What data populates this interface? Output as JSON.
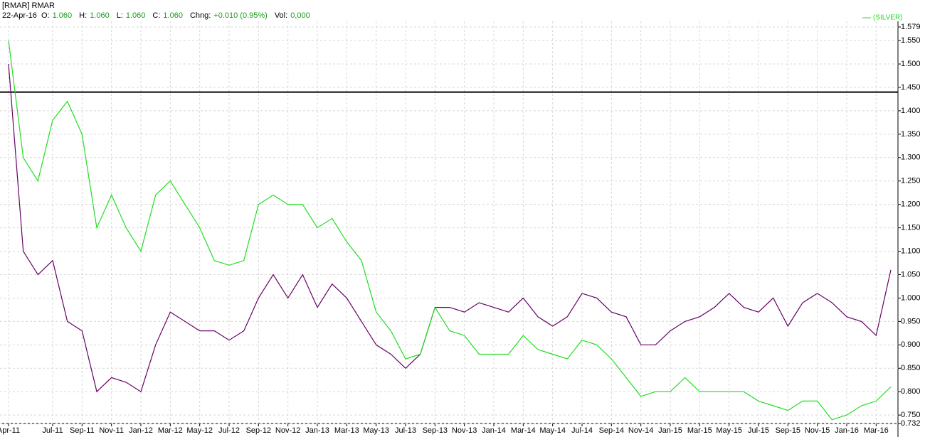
{
  "chart_data": {
    "type": "line",
    "title": "[RMAR] RMAR",
    "header": {
      "date": "22-Apr-16",
      "fields": [
        {
          "key": "O:",
          "value": "1.060"
        },
        {
          "key": "H:",
          "value": "1.060"
        },
        {
          "key": "L:",
          "value": "1.060"
        },
        {
          "key": "C:",
          "value": "1.060"
        },
        {
          "key": "Chng:",
          "value": "+0.010 (0.95%)"
        },
        {
          "key": "Vol:",
          "value": "0,000"
        }
      ]
    },
    "categories": [
      "Apr-11",
      null,
      null,
      "Jul-11",
      null,
      "Sep-11",
      null,
      "Nov-11",
      null,
      "Jan-12",
      null,
      "Mar-12",
      null,
      "May-12",
      null,
      "Jul-12",
      null,
      "Sep-12",
      null,
      "Nov-12",
      null,
      "Jan-13",
      null,
      "Mar-13",
      null,
      "May-13",
      null,
      "Jul-13",
      null,
      "Sep-13",
      null,
      "Nov-13",
      null,
      "Jan-14",
      null,
      "Mar-14",
      null,
      "May-14",
      null,
      "Jul-14",
      null,
      "Sep-14",
      null,
      "Nov-14",
      null,
      "Jan-15",
      null,
      "Mar-15",
      null,
      "May-15",
      null,
      "Jul-15",
      null,
      "Sep-15",
      null,
      "Nov-15",
      null,
      "Jan-16",
      null,
      "Mar-16",
      null
    ],
    "series": [
      {
        "color": "#660066",
        "values": [
          1.5,
          1.1,
          1.05,
          1.08,
          0.95,
          0.93,
          0.8,
          0.83,
          0.82,
          0.8,
          0.9,
          0.97,
          0.95,
          0.93,
          0.93,
          0.91,
          0.93,
          1.0,
          1.05,
          1.0,
          1.05,
          0.98,
          1.03,
          1.0,
          0.95,
          0.9,
          0.88,
          0.85,
          0.88,
          0.98,
          0.98,
          0.97,
          0.99,
          0.98,
          0.97,
          1.0,
          0.96,
          0.94,
          0.96,
          1.01,
          1.0,
          0.97,
          0.96,
          0.9,
          0.9,
          0.93,
          0.95,
          0.96,
          0.98,
          1.01,
          0.98,
          0.97,
          1.0,
          0.94,
          0.99,
          1.01,
          0.99,
          0.96,
          0.95,
          0.92,
          1.06
        ]
      },
      {
        "name": "(SILVER)",
        "color": "#22dd22",
        "values": [
          1.55,
          1.3,
          1.25,
          1.38,
          1.42,
          1.35,
          1.15,
          1.22,
          1.15,
          1.1,
          1.22,
          1.25,
          1.2,
          1.15,
          1.08,
          1.07,
          1.08,
          1.2,
          1.22,
          1.2,
          1.2,
          1.15,
          1.17,
          1.12,
          1.08,
          0.97,
          0.93,
          0.87,
          0.88,
          0.98,
          0.93,
          0.92,
          0.88,
          0.88,
          0.88,
          0.92,
          0.89,
          0.88,
          0.87,
          0.91,
          0.9,
          0.87,
          0.83,
          0.79,
          0.8,
          0.8,
          0.83,
          0.8,
          0.8,
          0.8,
          0.8,
          0.78,
          0.77,
          0.76,
          0.78,
          0.78,
          0.74,
          0.75,
          0.77,
          0.78,
          0.81
        ]
      }
    ],
    "hline": 1.44,
    "ylim": [
      0.732,
      1.579
    ],
    "yticks": [
      {
        "value": 0.732,
        "label": "0.732"
      },
      {
        "value": 0.75,
        "label": "0.750"
      },
      {
        "value": 0.8,
        "label": "0.800"
      },
      {
        "value": 0.85,
        "label": "0.850"
      },
      {
        "value": 0.9,
        "label": "0.900"
      },
      {
        "value": 0.95,
        "label": "0.950"
      },
      {
        "value": 1.0,
        "label": "1.000"
      },
      {
        "value": 1.05,
        "label": "1.050"
      },
      {
        "value": 1.1,
        "label": "1.100"
      },
      {
        "value": 1.15,
        "label": "1.150"
      },
      {
        "value": 1.2,
        "label": "1.200"
      },
      {
        "value": 1.25,
        "label": "1.250"
      },
      {
        "value": 1.3,
        "label": "1.300"
      },
      {
        "value": 1.35,
        "label": "1.350"
      },
      {
        "value": 1.4,
        "label": "1.400"
      },
      {
        "value": 1.45,
        "label": "1.450"
      },
      {
        "value": 1.5,
        "label": "1.500"
      },
      {
        "value": 1.55,
        "label": "1.550"
      },
      {
        "value": 1.579,
        "label": "1.579"
      }
    ],
    "grid": true
  }
}
